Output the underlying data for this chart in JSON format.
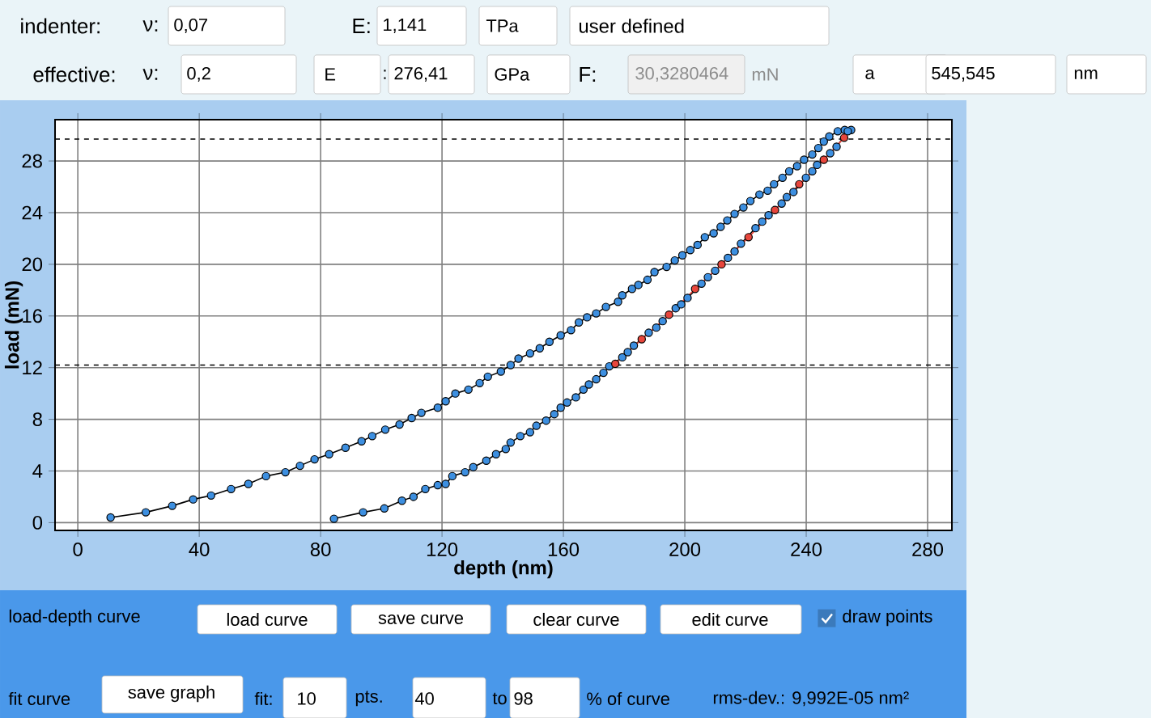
{
  "chart_data": {
    "type": "line",
    "xlabel": "depth  (nm)",
    "ylabel": "load  (mN)",
    "xlim": [
      -7.5,
      288
    ],
    "ylim": [
      -0.6,
      31.2
    ],
    "xticks": [
      0,
      40,
      80,
      120,
      160,
      200,
      240,
      280
    ],
    "yticks": [
      0,
      4,
      8,
      12,
      16,
      20,
      24,
      28
    ],
    "grid": true,
    "marker": "circle",
    "line_style": "solid",
    "ref_lines": [
      {
        "axis": "y",
        "value": 29.7,
        "line_style": "dashed",
        "color": "#000000"
      },
      {
        "axis": "y",
        "value": 12.2,
        "line_style": "dashed",
        "color": "#000000"
      }
    ],
    "series": [
      {
        "color": "#3d8fe0",
        "x": [
          10.8,
          22.4,
          31.1,
          38,
          43.9,
          50.5,
          56.2,
          62,
          68.4,
          73.2,
          78,
          82.8,
          88.2,
          93.5,
          97,
          101.3,
          106,
          110,
          113.2,
          118.6,
          121.2,
          124.4,
          128.7,
          132.4,
          135.1,
          139.4,
          142.6,
          145.2,
          149,
          152.2,
          155.4,
          159.1,
          162.5,
          165.1,
          167.8,
          170.8,
          174,
          178,
          179.4,
          182.6,
          184.7,
          187.7,
          190,
          194,
          196.7,
          199.2,
          201.8,
          204.2,
          206.6,
          209.5,
          211.8,
          214,
          216.4,
          219.3,
          221.6,
          224.6,
          227.3,
          229.4,
          232.2,
          234.4,
          237,
          239.3,
          242,
          244,
          245.8,
          247.6,
          250.4,
          252.7,
          254.8
        ],
        "values": [
          0.4,
          0.8,
          1.3,
          1.8,
          2.1,
          2.6,
          3.0,
          3.6,
          3.9,
          4.4,
          4.9,
          5.3,
          5.8,
          6.3,
          6.7,
          7.2,
          7.6,
          8.1,
          8.5,
          8.9,
          9.4,
          10.0,
          10.3,
          10.8,
          11.3,
          11.7,
          12.2,
          12.7,
          13.1,
          13.5,
          14.0,
          14.5,
          14.9,
          15.5,
          15.9,
          16.2,
          16.7,
          17.1,
          17.6,
          18.1,
          18.4,
          18.8,
          19.4,
          19.8,
          20.3,
          20.7,
          21.1,
          21.5,
          22.1,
          22.4,
          22.9,
          23.4,
          23.9,
          24.4,
          24.9,
          25.4,
          25.7,
          26.2,
          26.7,
          27.2,
          27.6,
          28.1,
          28.5,
          29.0,
          29.5,
          29.9,
          30.3,
          30.4,
          30.4
        ]
      },
      {
        "color": "#3d8fe0",
        "x": [
          84.4,
          94,
          101,
          106.8,
          110.6,
          114.5,
          118.6,
          121.2,
          123.4,
          127.6,
          130.3,
          134.6,
          137.8,
          141,
          142.6,
          145.8,
          149,
          151.1,
          154.3,
          157,
          159.1,
          161.2,
          164.1,
          166.6,
          168.4,
          170.8,
          173.2,
          175.1,
          179.4,
          181.2,
          183.2,
          188.1,
          190.6,
          192.7,
          197,
          198.8,
          200.9,
          205.5,
          207.6,
          210,
          214.2,
          216.4,
          218.5,
          223.3,
          225.5,
          227.6,
          231.9,
          233.6,
          235.8,
          239.9,
          242,
          243.6,
          247.9,
          250,
          253.7
        ],
        "values": [
          0.3,
          0.8,
          1.1,
          1.7,
          2.0,
          2.6,
          2.9,
          3.0,
          3.6,
          3.9,
          4.3,
          4.8,
          5.3,
          5.7,
          6.2,
          6.7,
          7.0,
          7.5,
          7.9,
          8.4,
          8.9,
          9.3,
          9.7,
          10.3,
          10.7,
          11.1,
          11.6,
          12.1,
          12.8,
          13.2,
          13.7,
          14.7,
          15.1,
          15.6,
          16.6,
          16.9,
          17.4,
          18.5,
          19.0,
          19.5,
          20.5,
          21.0,
          21.6,
          22.8,
          23.3,
          23.8,
          24.7,
          25.2,
          25.6,
          26.7,
          27.2,
          27.7,
          28.6,
          29.1,
          30.3
        ]
      },
      {
        "type": "line",
        "color": "#e8463c",
        "x": [
          177.1,
          185.8,
          194.8,
          203.4,
          212.1,
          221,
          229.7,
          237.7,
          245.8,
          252.5
        ],
        "values": [
          12.3,
          14.2,
          16.1,
          18.1,
          20.0,
          22.1,
          24.2,
          26.2,
          28.1,
          29.8
        ]
      }
    ],
    "annotations": [
      "indenter:",
      "ν:",
      "0,07",
      "E:",
      "1,141",
      "TPa",
      "user defined",
      "effective:",
      "ν:",
      "0,2",
      "E",
      ":",
      "276,41",
      "GPa",
      "F:",
      "30,3280464",
      "mN",
      "a",
      "545,545",
      "nm",
      "load-depth curve",
      "load curve",
      "save curve",
      "clear curve",
      "edit curve",
      "draw points",
      "fit curve",
      "save graph",
      "fit:",
      "10",
      "pts.",
      "40",
      "to",
      "98",
      "% of curve",
      "rms-dev.: 9,992E-05 nm²"
    ]
  }
}
